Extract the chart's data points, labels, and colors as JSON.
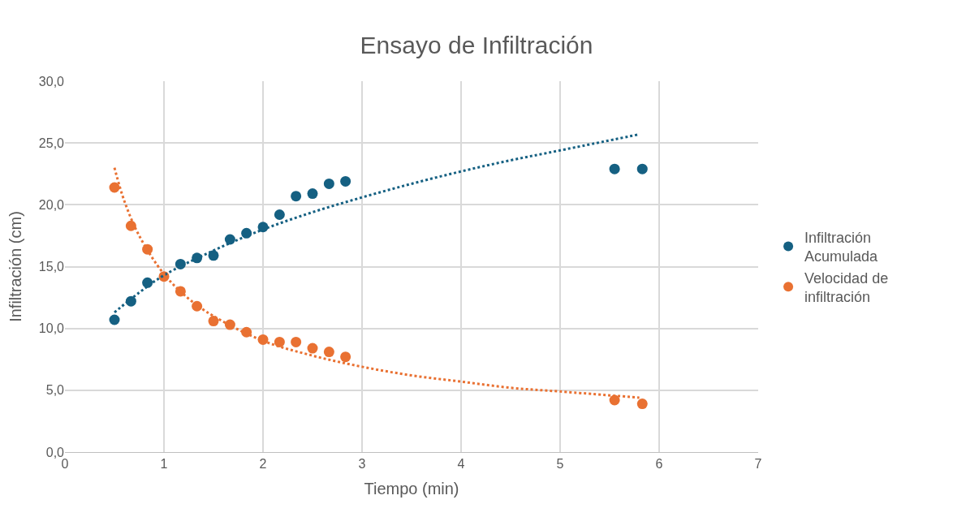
{
  "chart_data": {
    "type": "scatter",
    "title": "Ensayo de Infiltración",
    "xlabel": "Tiempo (min)",
    "ylabel": "Infiltración (cm)",
    "xlim": [
      0,
      7
    ],
    "xticks": [
      0,
      1,
      2,
      3,
      4,
      5,
      6,
      7
    ],
    "ylim": [
      0,
      30
    ],
    "yticks": [
      {
        "value": 0,
        "label": "0,0"
      },
      {
        "value": 5,
        "label": "5,0"
      },
      {
        "value": 10,
        "label": "10,0"
      },
      {
        "value": 15,
        "label": "15,0"
      },
      {
        "value": 20,
        "label": "20,0"
      },
      {
        "value": 25,
        "label": "25,0"
      },
      {
        "value": 30,
        "label": "30,0"
      }
    ],
    "grid": true,
    "legend": "right",
    "marker": "circle",
    "x": [
      0.5,
      0.667,
      0.833,
      1.0,
      1.167,
      1.333,
      1.5,
      1.667,
      1.833,
      2.0,
      2.167,
      2.333,
      2.5,
      2.667,
      2.833,
      5.55,
      5.83
    ],
    "series": [
      {
        "name": "Infiltración Acumulada",
        "color": "#156082",
        "values": [
          10.7,
          12.2,
          13.7,
          null,
          15.2,
          15.7,
          15.9,
          17.2,
          17.7,
          18.2,
          19.2,
          20.7,
          20.9,
          21.7,
          21.9,
          22.9,
          22.9
        ]
      },
      {
        "name": "Velocidad de infiltración",
        "color": "#e97132",
        "values": [
          21.4,
          18.3,
          16.4,
          14.2,
          13.0,
          11.8,
          10.6,
          10.3,
          9.7,
          9.1,
          8.9,
          8.9,
          8.4,
          8.1,
          7.7,
          4.2,
          3.9
        ]
      },
      {
        "type": "line",
        "color": "#156082",
        "line_style": "dotted",
        "marker": "none",
        "x": [
          0.5,
          0.75,
          1,
          1.5,
          2,
          2.5,
          3,
          3.5,
          4,
          4.5,
          5,
          5.8
        ],
        "values": [
          11.3,
          12.9,
          14.3,
          16.3,
          18.0,
          19.4,
          20.6,
          21.7,
          22.7,
          23.6,
          24.4,
          25.7
        ]
      },
      {
        "type": "line",
        "color": "#e97132",
        "line_style": "dotted",
        "marker": "none",
        "x": [
          0.5,
          0.6,
          0.75,
          1,
          1.25,
          1.5,
          2,
          2.5,
          3,
          3.5,
          4,
          4.5,
          5,
          5.8
        ],
        "values": [
          23.0,
          20.3,
          17.5,
          14.4,
          12.4,
          11.0,
          9.0,
          7.8,
          6.9,
          6.2,
          5.7,
          5.2,
          4.9,
          4.4
        ]
      }
    ]
  }
}
